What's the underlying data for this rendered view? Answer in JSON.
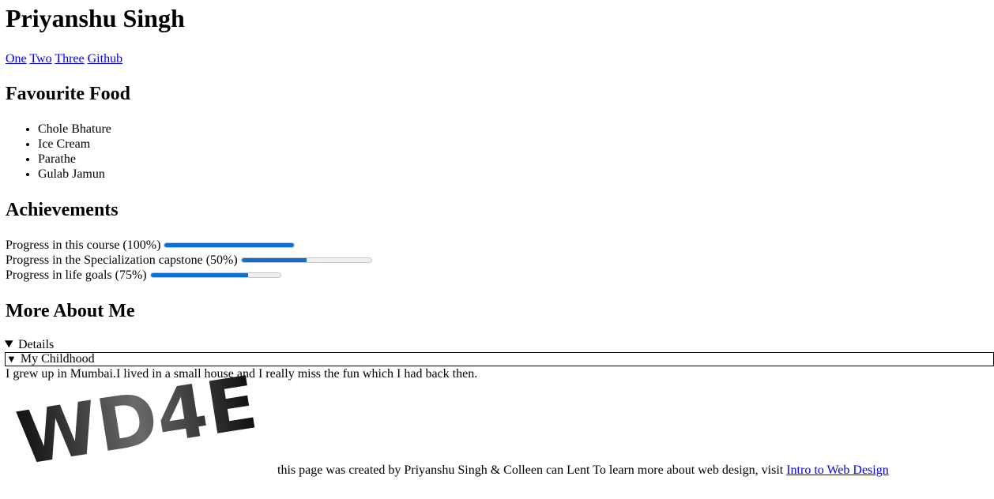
{
  "header": {
    "title": "Priyanshu Singh",
    "nav": [
      {
        "label": "One"
      },
      {
        "label": "Two"
      },
      {
        "label": "Three"
      },
      {
        "label": "Github"
      }
    ]
  },
  "food": {
    "heading": "Favourite Food",
    "items": [
      "Chole Bhature",
      "Ice Cream",
      "Parathe",
      "Gulab Jamun"
    ]
  },
  "achievements": {
    "heading": "Achievements",
    "items": [
      {
        "label": "Progress in this course (100%)",
        "value": 100
      },
      {
        "label": "Progress in the Specialization capstone (50%)",
        "value": 50
      },
      {
        "label": "Progress in life goals (75%)",
        "value": 75
      }
    ],
    "bar_color": "#0f6fd0"
  },
  "more": {
    "heading": "More About Me",
    "summary": "My Childhood",
    "details_text": "I grew up in Mumbai.I lived in a small house and I really miss the fun which I had back then."
  },
  "logo": {
    "text": "WD4E"
  },
  "footer": {
    "text": "this page was created by Priyanshu Singh & Colleen can Lent To learn more about web design, visit ",
    "link": "Intro to Web Design"
  }
}
